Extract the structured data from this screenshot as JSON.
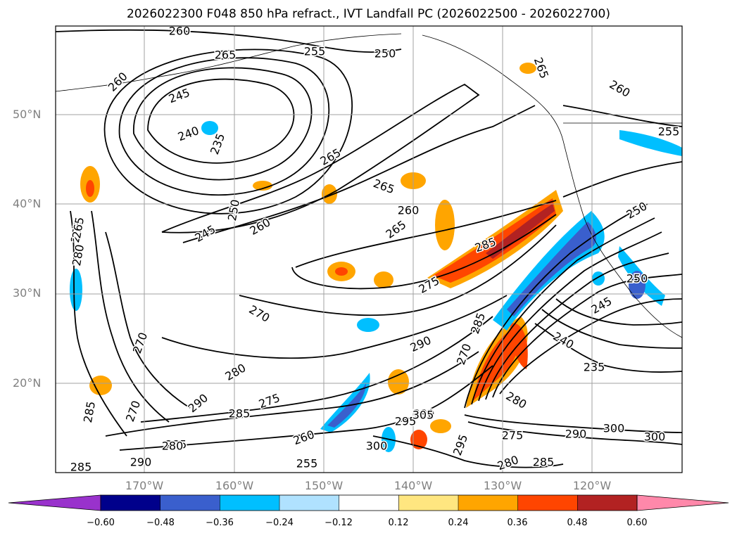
{
  "title": "2026022300 F048 850 hPa refract., IVT Landfall PC (2026022500 - 2026022700)",
  "map": {
    "latitude_labels": [
      "50°N",
      "40°N",
      "30°N",
      "20°N"
    ],
    "longitude_labels": [
      "170°W",
      "160°W",
      "150°W",
      "140°W",
      "130°W",
      "120°W"
    ],
    "contour_labels": [
      "260",
      "265",
      "255",
      "250",
      "265",
      "260",
      "245",
      "240",
      "235",
      "265",
      "265",
      "260",
      "250",
      "245",
      "260",
      "270",
      "265",
      "255",
      "250",
      "275",
      "285",
      "280",
      "290",
      "270",
      "285",
      "290",
      "280",
      "270",
      "275",
      "285",
      "260",
      "290",
      "295",
      "300",
      "305",
      "295",
      "275",
      "280",
      "285",
      "280",
      "235",
      "240",
      "245",
      "250",
      "255",
      "260",
      "265",
      "255",
      "300",
      "290",
      "285",
      "280",
      "300",
      "290",
      "285",
      "270",
      "285"
    ]
  },
  "colorbar": {
    "ticks": [
      "−0.60",
      "−0.48",
      "−0.36",
      "−0.24",
      "−0.12",
      "0.12",
      "0.24",
      "0.36",
      "0.48",
      "0.60"
    ],
    "colors": [
      "#9932cc",
      "#00008b",
      "#3a5fcd",
      "#00bfff",
      "#b0e2ff",
      "#ffffff",
      "#ffe680",
      "#ffa500",
      "#ff4500",
      "#b22222",
      "#ff88aa"
    ]
  },
  "colors": {
    "contour": "#000000",
    "grid": "#a0a0a0",
    "axis_label": "#808080"
  }
}
